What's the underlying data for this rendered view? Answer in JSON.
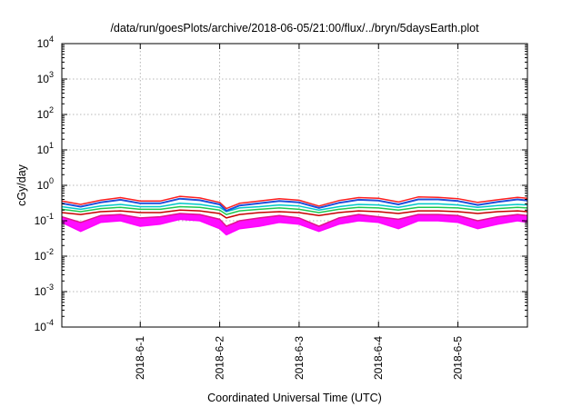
{
  "chart_data": {
    "type": "line",
    "title": "/data/run/goesPlots/archive/2018-06-05/21:00/flux/../bryn/5daysEarth.plot",
    "xlabel": "Coordinated Universal Time (UTC)",
    "ylabel": "cGy/day",
    "yscale": "log",
    "ylim": [
      0.0001,
      10000
    ],
    "y_ticks": [
      {
        "value": 0.0001,
        "base": "10",
        "exp": "-4"
      },
      {
        "value": 0.001,
        "base": "10",
        "exp": "-3"
      },
      {
        "value": 0.01,
        "base": "10",
        "exp": "-2"
      },
      {
        "value": 0.1,
        "base": "10",
        "exp": "-1"
      },
      {
        "value": 1,
        "base": "10",
        "exp": "0"
      },
      {
        "value": 10,
        "base": "10",
        "exp": "1"
      },
      {
        "value": 100,
        "base": "10",
        "exp": "2"
      },
      {
        "value": 1000,
        "base": "10",
        "exp": "3"
      },
      {
        "value": 10000,
        "base": "10",
        "exp": "4"
      }
    ],
    "xlim": [
      "2018-05-31T00:18",
      "2018-06-05T21:00"
    ],
    "x_ticks": [
      {
        "value": "2018-06-01",
        "label": "2018-6-1"
      },
      {
        "value": "2018-06-02",
        "label": "2018-6-2"
      },
      {
        "value": "2018-06-03",
        "label": "2018-6-3"
      },
      {
        "value": "2018-06-04",
        "label": "2018-6-4"
      },
      {
        "value": "2018-06-05",
        "label": "2018-6-5"
      }
    ],
    "grid": true,
    "legend": "none",
    "series": [
      {
        "color": "#e0138c",
        "fill_to": 1,
        "x": [
          "2018-05-31T00:18",
          "2018-05-31T06:00",
          "2018-05-31T12:00",
          "2018-05-31T18:00",
          "2018-06-01T00:00",
          "2018-06-01T06:00",
          "2018-06-01T12:00",
          "2018-06-01T18:00",
          "2018-06-02T00:00",
          "2018-06-02T02:00",
          "2018-06-02T06:00",
          "2018-06-02T12:00",
          "2018-06-02T18:00",
          "2018-06-03T00:00",
          "2018-06-03T06:00",
          "2018-06-03T12:00",
          "2018-06-03T18:00",
          "2018-06-04T00:00",
          "2018-06-04T06:00",
          "2018-06-04T12:00",
          "2018-06-04T18:00",
          "2018-06-05T00:00",
          "2018-06-05T06:00",
          "2018-06-05T12:00",
          "2018-06-05T18:00",
          "2018-06-05T21:00"
        ],
        "values": [
          0.13,
          0.09,
          0.14,
          0.15,
          0.12,
          0.13,
          0.16,
          0.15,
          0.11,
          0.07,
          0.1,
          0.12,
          0.14,
          0.12,
          0.07,
          0.12,
          0.15,
          0.13,
          0.11,
          0.15,
          0.15,
          0.14,
          0.1,
          0.13,
          0.15,
          0.14
        ]
      },
      {
        "color": "#ff00ff",
        "x": [
          "2018-05-31T00:18",
          "2018-05-31T06:00",
          "2018-05-31T12:00",
          "2018-05-31T18:00",
          "2018-06-01T00:00",
          "2018-06-01T06:00",
          "2018-06-01T12:00",
          "2018-06-01T18:00",
          "2018-06-02T00:00",
          "2018-06-02T02:00",
          "2018-06-02T06:00",
          "2018-06-02T12:00",
          "2018-06-02T18:00",
          "2018-06-03T00:00",
          "2018-06-03T06:00",
          "2018-06-03T12:00",
          "2018-06-03T18:00",
          "2018-06-04T00:00",
          "2018-06-04T06:00",
          "2018-06-04T12:00",
          "2018-06-04T18:00",
          "2018-06-05T00:00",
          "2018-06-05T06:00",
          "2018-06-05T12:00",
          "2018-06-05T18:00",
          "2018-06-05T21:00"
        ],
        "values": [
          0.09,
          0.05,
          0.09,
          0.1,
          0.07,
          0.08,
          0.11,
          0.1,
          0.06,
          0.04,
          0.06,
          0.07,
          0.09,
          0.08,
          0.05,
          0.08,
          0.1,
          0.09,
          0.06,
          0.1,
          0.1,
          0.09,
          0.06,
          0.08,
          0.1,
          0.09
        ]
      },
      {
        "color": "#c80000",
        "x": [
          "2018-05-31T00:18",
          "2018-05-31T06:00",
          "2018-05-31T12:00",
          "2018-05-31T18:00",
          "2018-06-01T00:00",
          "2018-06-01T06:00",
          "2018-06-01T12:00",
          "2018-06-01T18:00",
          "2018-06-02T00:00",
          "2018-06-02T02:00",
          "2018-06-02T06:00",
          "2018-06-02T12:00",
          "2018-06-02T18:00",
          "2018-06-03T00:00",
          "2018-06-03T06:00",
          "2018-06-03T12:00",
          "2018-06-03T18:00",
          "2018-06-04T00:00",
          "2018-06-04T06:00",
          "2018-06-04T12:00",
          "2018-06-04T18:00",
          "2018-06-05T00:00",
          "2018-06-05T06:00",
          "2018-06-05T12:00",
          "2018-06-05T18:00",
          "2018-06-05T21:00"
        ],
        "values": [
          0.17,
          0.15,
          0.18,
          0.19,
          0.17,
          0.17,
          0.2,
          0.19,
          0.16,
          0.12,
          0.15,
          0.17,
          0.18,
          0.17,
          0.14,
          0.17,
          0.19,
          0.18,
          0.16,
          0.19,
          0.19,
          0.18,
          0.16,
          0.18,
          0.19,
          0.18
        ]
      },
      {
        "color": "#1ec850",
        "x": [
          "2018-05-31T00:18",
          "2018-05-31T06:00",
          "2018-05-31T12:00",
          "2018-05-31T18:00",
          "2018-06-01T00:00",
          "2018-06-01T06:00",
          "2018-06-01T12:00",
          "2018-06-01T18:00",
          "2018-06-02T00:00",
          "2018-06-02T02:00",
          "2018-06-02T06:00",
          "2018-06-02T12:00",
          "2018-06-02T18:00",
          "2018-06-03T00:00",
          "2018-06-03T06:00",
          "2018-06-03T12:00",
          "2018-06-03T18:00",
          "2018-06-04T00:00",
          "2018-06-04T06:00",
          "2018-06-04T12:00",
          "2018-06-04T18:00",
          "2018-06-05T00:00",
          "2018-06-05T06:00",
          "2018-06-05T12:00",
          "2018-06-05T18:00",
          "2018-06-05T21:00"
        ],
        "values": [
          0.21,
          0.18,
          0.22,
          0.24,
          0.21,
          0.21,
          0.25,
          0.24,
          0.2,
          0.15,
          0.19,
          0.21,
          0.23,
          0.21,
          0.17,
          0.21,
          0.24,
          0.23,
          0.2,
          0.24,
          0.24,
          0.23,
          0.2,
          0.22,
          0.24,
          0.23
        ]
      },
      {
        "color": "#00c8c8",
        "x": [
          "2018-05-31T00:18",
          "2018-05-31T06:00",
          "2018-05-31T12:00",
          "2018-05-31T18:00",
          "2018-06-01T00:00",
          "2018-06-01T06:00",
          "2018-06-01T12:00",
          "2018-06-01T18:00",
          "2018-06-02T00:00",
          "2018-06-02T02:00",
          "2018-06-02T06:00",
          "2018-06-02T12:00",
          "2018-06-02T18:00",
          "2018-06-03T00:00",
          "2018-06-03T06:00",
          "2018-06-03T12:00",
          "2018-06-03T18:00",
          "2018-06-04T00:00",
          "2018-06-04T06:00",
          "2018-06-04T12:00",
          "2018-06-04T18:00",
          "2018-06-05T00:00",
          "2018-06-05T06:00",
          "2018-06-05T12:00",
          "2018-06-05T18:00",
          "2018-06-05T21:00"
        ],
        "values": [
          0.25,
          0.21,
          0.26,
          0.29,
          0.25,
          0.25,
          0.31,
          0.29,
          0.24,
          0.18,
          0.23,
          0.25,
          0.28,
          0.26,
          0.2,
          0.25,
          0.29,
          0.28,
          0.24,
          0.3,
          0.3,
          0.28,
          0.24,
          0.27,
          0.29,
          0.28
        ]
      },
      {
        "color": "#ff2020",
        "x": [
          "2018-05-31T00:18",
          "2018-05-31T06:00",
          "2018-05-31T12:00",
          "2018-05-31T18:00",
          "2018-06-01T00:00",
          "2018-06-01T06:00",
          "2018-06-01T12:00",
          "2018-06-01T18:00",
          "2018-06-02T00:00",
          "2018-06-02T02:00",
          "2018-06-02T06:00",
          "2018-06-02T12:00",
          "2018-06-02T18:00",
          "2018-06-03T00:00",
          "2018-06-03T06:00",
          "2018-06-03T12:00",
          "2018-06-03T18:00",
          "2018-06-04T00:00",
          "2018-06-04T06:00",
          "2018-06-04T12:00",
          "2018-06-04T18:00",
          "2018-06-05T00:00",
          "2018-06-05T06:00",
          "2018-06-05T12:00",
          "2018-06-05T18:00",
          "2018-06-05T21:00"
        ],
        "values": [
          0.36,
          0.29,
          0.38,
          0.45,
          0.36,
          0.36,
          0.49,
          0.44,
          0.33,
          0.22,
          0.31,
          0.36,
          0.42,
          0.38,
          0.26,
          0.37,
          0.45,
          0.43,
          0.34,
          0.47,
          0.46,
          0.42,
          0.33,
          0.39,
          0.46,
          0.43
        ]
      },
      {
        "color": "#1e50dc",
        "x": [
          "2018-05-31T00:18",
          "2018-05-31T06:00",
          "2018-05-31T12:00",
          "2018-05-31T18:00",
          "2018-06-01T00:00",
          "2018-06-01T06:00",
          "2018-06-01T12:00",
          "2018-06-01T18:00",
          "2018-06-02T00:00",
          "2018-06-02T02:00",
          "2018-06-02T06:00",
          "2018-06-02T12:00",
          "2018-06-02T18:00",
          "2018-06-03T00:00",
          "2018-06-03T06:00",
          "2018-06-03T12:00",
          "2018-06-03T18:00",
          "2018-06-04T00:00",
          "2018-06-04T06:00",
          "2018-06-04T12:00",
          "2018-06-04T18:00",
          "2018-06-05T00:00",
          "2018-06-05T06:00",
          "2018-06-05T12:00",
          "2018-06-05T18:00",
          "2018-06-05T21:00"
        ],
        "values": [
          0.31,
          0.25,
          0.33,
          0.39,
          0.31,
          0.31,
          0.42,
          0.38,
          0.29,
          0.19,
          0.27,
          0.31,
          0.36,
          0.33,
          0.23,
          0.32,
          0.39,
          0.37,
          0.29,
          0.4,
          0.4,
          0.36,
          0.28,
          0.34,
          0.4,
          0.37
        ]
      }
    ]
  }
}
